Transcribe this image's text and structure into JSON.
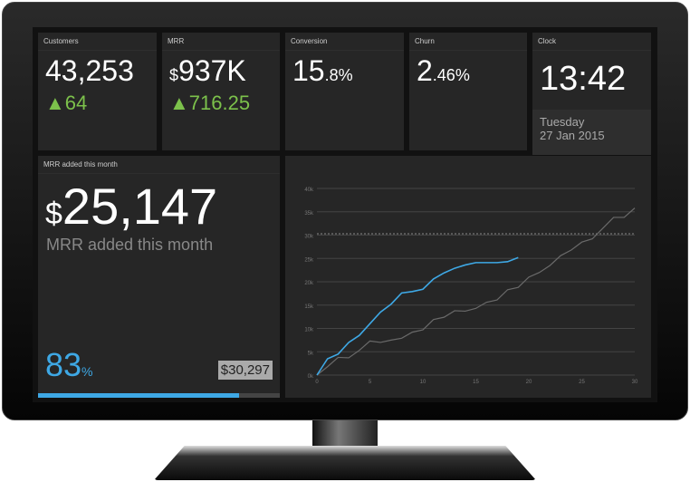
{
  "tiles": {
    "customers": {
      "label": "Customers",
      "value": "43,253",
      "delta": "64"
    },
    "mrr": {
      "label": "MRR",
      "prefix": "$",
      "value": "937K",
      "delta": "716.25"
    },
    "conversion": {
      "label": "Conversion",
      "value": "15",
      "decimal": ".8%"
    },
    "churn": {
      "label": "Churn",
      "value": "2",
      "decimal": ".46%"
    },
    "clock": {
      "label": "Clock",
      "time": "13:42",
      "day": "Tuesday",
      "date": "27 Jan 2015"
    }
  },
  "mrr_month": {
    "label": "MRR added this month",
    "prefix": "$",
    "value": "25,147",
    "subtitle": "MRR added this month",
    "percent": "83",
    "percent_unit": "%",
    "progress": 0.83,
    "target": "$30,297"
  },
  "colors": {
    "accent": "#3ea8e5",
    "up": "#7cc14b",
    "gray_series": "#6a6a6a"
  },
  "chart_data": {
    "type": "line",
    "xlim": [
      0,
      30
    ],
    "ylim": [
      0,
      40000
    ],
    "xticks": [
      "0",
      "5",
      "10",
      "15",
      "20",
      "25",
      "30"
    ],
    "yticks": [
      "0k",
      "5k",
      "10k",
      "15k",
      "20k",
      "25k",
      "30k",
      "35k",
      "40k"
    ],
    "target_line": 30300,
    "grid": true,
    "series": [
      {
        "color": "#3ea8e5",
        "values": [
          0,
          3500,
          4500,
          7000,
          8500,
          11000,
          13500,
          15200,
          17600,
          17900,
          18400,
          20600,
          21900,
          22900,
          23600,
          24100,
          24100,
          24100,
          24300,
          25200
        ]
      },
      {
        "color": "#6a6a6a",
        "values": [
          0,
          1800,
          3800,
          3700,
          5300,
          7300,
          7000,
          7500,
          7900,
          9200,
          9700,
          11900,
          12400,
          13800,
          13700,
          14300,
          15600,
          16100,
          18300,
          18800,
          21000,
          22000,
          23500,
          25600,
          26800,
          28500,
          29200,
          31500,
          33800,
          33800,
          35800
        ]
      }
    ]
  }
}
